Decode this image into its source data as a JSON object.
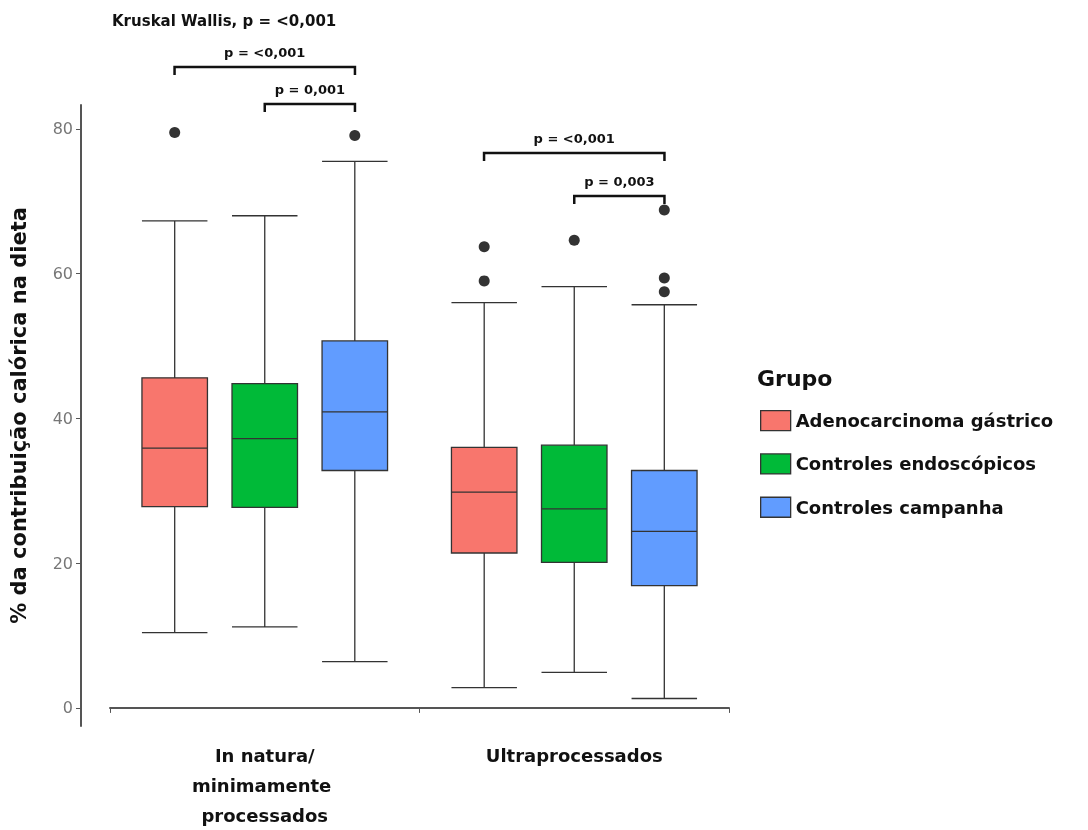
{
  "chart_data": {
    "type": "box",
    "title": "Kruskal Wallis, p = <0,001",
    "ylabel": "% da contribuição calórica na dieta",
    "legend_title": "Grupo",
    "categories": [
      "In natura/minimamente processados",
      "Ultraprocessados"
    ],
    "series": [
      {
        "name": "Adenocarcinoma gástrico",
        "color": "#f8766d",
        "boxes": [
          {
            "low": 10.4,
            "q1": 27.8,
            "median": 35.9,
            "q3": 45.6,
            "high": 67.3,
            "outliers": [
              79.5
            ]
          },
          {
            "low": 2.8,
            "q1": 21.4,
            "median": 29.8,
            "q3": 36.0,
            "high": 56.0,
            "outliers": [
              59.0,
              63.7
            ]
          }
        ]
      },
      {
        "name": "Controles endoscópicos",
        "color": "#00ba38",
        "boxes": [
          {
            "low": 11.2,
            "q1": 27.7,
            "median": 37.2,
            "q3": 44.8,
            "high": 68.0
          },
          {
            "low": 4.9,
            "q1": 20.1,
            "median": 27.5,
            "q3": 36.3,
            "high": 58.2,
            "outliers": [
              64.6
            ]
          }
        ]
      },
      {
        "name": "Controles campanha",
        "color": "#619cff",
        "boxes": [
          {
            "low": 6.4,
            "q1": 32.8,
            "median": 40.9,
            "q3": 50.7,
            "high": 75.5,
            "outliers": [
              79.1
            ]
          },
          {
            "low": 1.3,
            "q1": 16.9,
            "median": 24.4,
            "q3": 32.8,
            "high": 55.7,
            "outliers": [
              57.5,
              59.4,
              68.8
            ]
          }
        ]
      }
    ],
    "ylim": [
      -2.5,
      83.3
    ],
    "yticks": [
      0,
      20,
      40,
      60,
      80
    ],
    "grid": false,
    "legend": "right",
    "annotations": [
      "p = <0,001",
      "p = 0,001",
      "p = <0,001",
      "p = 0,003"
    ]
  }
}
